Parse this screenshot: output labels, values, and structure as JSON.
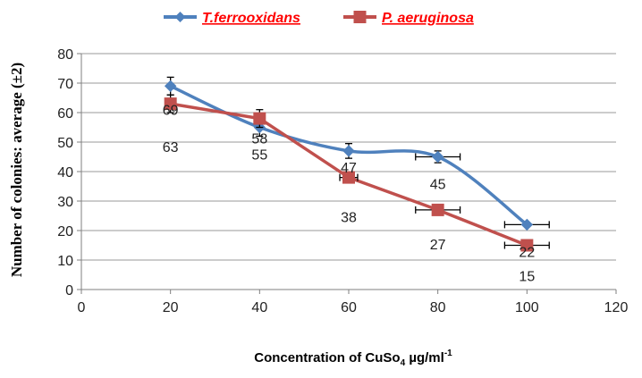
{
  "chart_data": {
    "type": "scatter",
    "title": "",
    "xlabel": "Concentration of  CuSo",
    "xlabel_subscript": "4",
    "xlabel_unit": "µg/ml",
    "xlabel_superscript": "-1",
    "ylabel": "Number  of colonies: average (±2)",
    "xlim": [
      0,
      120
    ],
    "ylim": [
      0,
      80
    ],
    "x_ticks": [
      "0",
      "20",
      "40",
      "60",
      "80",
      "100",
      "120"
    ],
    "y_ticks": [
      "0",
      "10",
      "20",
      "30",
      "40",
      "50",
      "60",
      "70",
      "80"
    ],
    "grid": "horizontal",
    "legend_position": "top",
    "series": [
      {
        "name": "T.ferrooxidans",
        "color": "#4f81bd",
        "marker": "diamond",
        "smooth": true,
        "x": [
          20,
          40,
          60,
          80,
          100
        ],
        "y": [
          69,
          55,
          47,
          45,
          22
        ],
        "labels": [
          "69",
          "55",
          "47",
          "45",
          "22"
        ],
        "y_error": [
          3,
          3,
          2.5,
          2,
          0
        ],
        "x_error": [
          0,
          0,
          0,
          5,
          5
        ]
      },
      {
        "name": "P. aeruginosa",
        "color": "#c0504d",
        "marker": "square",
        "smooth": false,
        "x": [
          20,
          40,
          60,
          80,
          100
        ],
        "y": [
          63,
          58,
          38,
          27,
          15
        ],
        "labels": [
          "63",
          "58",
          "38",
          "27",
          "15"
        ],
        "y_error": [
          3,
          3,
          1,
          0,
          0
        ],
        "x_error": [
          0,
          0,
          2,
          5,
          5
        ]
      }
    ]
  }
}
